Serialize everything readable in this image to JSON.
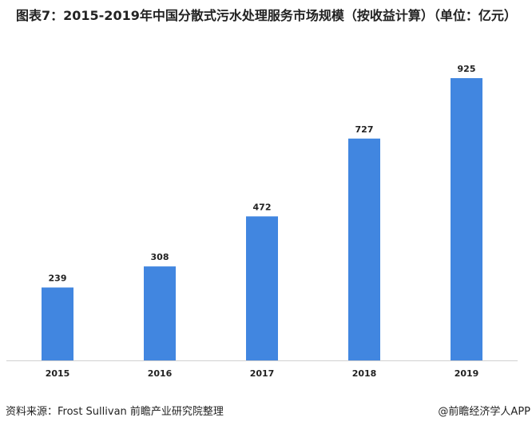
{
  "chart_data": {
    "type": "bar",
    "title": "图表7：2015-2019年中国分散式污水处理服务市场规模（按收益计算）（单位：亿元）",
    "categories": [
      "2015",
      "2016",
      "2017",
      "2018",
      "2019"
    ],
    "values": [
      239,
      308,
      472,
      727,
      925
    ],
    "ylim": [
      0,
      925
    ],
    "grid": false,
    "bar_color": "#4186E0"
  },
  "footer": {
    "source": "资料来源：Frost Sullivan 前瞻产业研究院整理",
    "credit": "@前瞻经济学人APP"
  }
}
